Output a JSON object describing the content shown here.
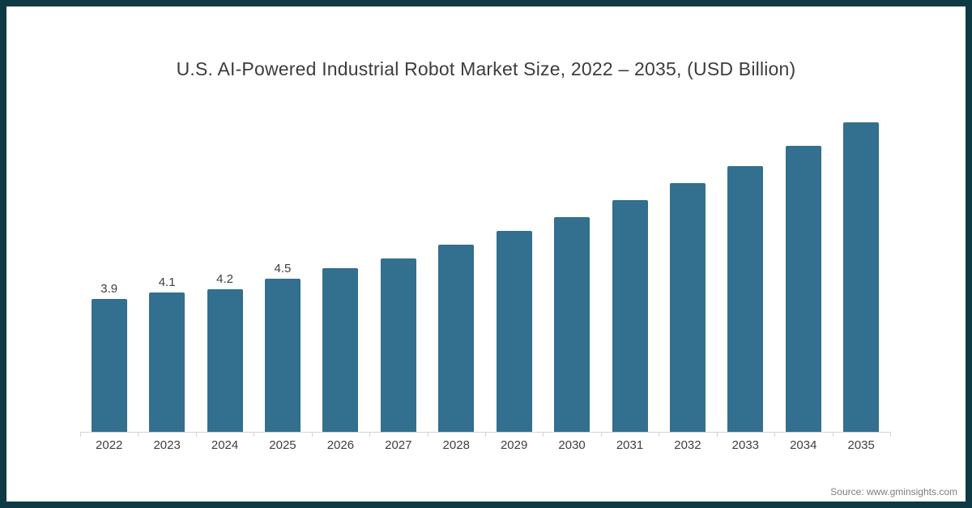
{
  "title": "U.S. AI-Powered Industrial Robot Market Size, 2022 – 2035, (USD Billion)",
  "source_text": "Source: www.gminsights.com",
  "colors": {
    "frame": "#0f3a44",
    "bar": "#336f8e",
    "axis": "#d4d4d4",
    "title_text": "#3d3d3d",
    "label_text": "#404040",
    "source_text": "#7f7f7f"
  },
  "chart_data": {
    "type": "bar",
    "title": "U.S. AI-Powered Industrial Robot Market Size, 2022 – 2035, (USD Billion)",
    "categories": [
      "2022",
      "2023",
      "2024",
      "2025",
      "2026",
      "2027",
      "2028",
      "2029",
      "2030",
      "2031",
      "2032",
      "2033",
      "2034",
      "2035"
    ],
    "values": [
      3.9,
      4.1,
      4.2,
      4.5,
      4.8,
      5.1,
      5.5,
      5.9,
      6.3,
      6.8,
      7.3,
      7.8,
      8.4,
      9.1
    ],
    "data_labels": [
      "3.9",
      "4.1",
      "4.2",
      "4.5",
      "",
      "",
      "",
      "",
      "",
      "",
      "",
      "",
      "",
      ""
    ],
    "xlabel": "",
    "ylabel": "",
    "unit": "USD Billion",
    "ylim": [
      0,
      10
    ],
    "grid": false,
    "legend_position": "none",
    "bar_color": "#336f8e",
    "axis_line_color": "#d4d4d4"
  }
}
